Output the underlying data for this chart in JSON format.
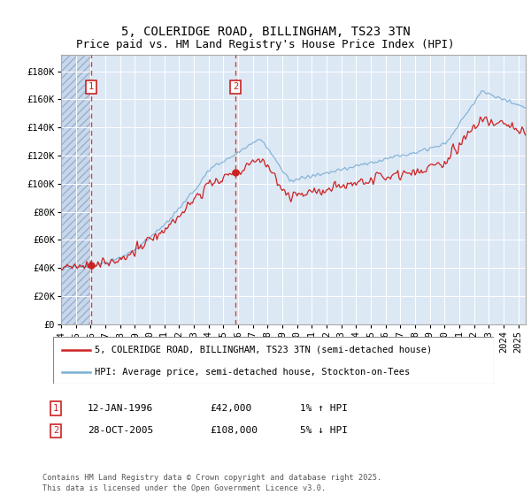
{
  "title": "5, COLERIDGE ROAD, BILLINGHAM, TS23 3TN",
  "subtitle": "Price paid vs. HM Land Registry's House Price Index (HPI)",
  "xlim_start": 1994.0,
  "xlim_end": 2025.5,
  "ylim": [
    0,
    192000
  ],
  "yticks": [
    0,
    20000,
    40000,
    60000,
    80000,
    100000,
    120000,
    140000,
    160000,
    180000
  ],
  "ytick_labels": [
    "£0",
    "£20K",
    "£40K",
    "£60K",
    "£80K",
    "£100K",
    "£120K",
    "£140K",
    "£160K",
    "£180K"
  ],
  "sale1_date": 1996.04,
  "sale1_price": 42000,
  "sale1_label": "1",
  "sale2_date": 2005.83,
  "sale2_price": 108000,
  "sale2_label": "2",
  "legend_line1": "5, COLERIDGE ROAD, BILLINGHAM, TS23 3TN (semi-detached house)",
  "legend_line2": "HPI: Average price, semi-detached house, Stockton-on-Tees",
  "ann1_date": "12-JAN-1996",
  "ann1_price": "£42,000",
  "ann1_hpi": "1% ↑ HPI",
  "ann2_date": "28-OCT-2005",
  "ann2_price": "£108,000",
  "ann2_hpi": "5% ↓ HPI",
  "footnote": "Contains HM Land Registry data © Crown copyright and database right 2025.\nThis data is licensed under the Open Government Licence v3.0.",
  "line_color_red": "#cc2222",
  "line_color_blue": "#7bafd4",
  "background_color": "#dde8f5",
  "hatch_bg": "#c8d8ec",
  "grid_color": "#ffffff",
  "title_fontsize": 10,
  "tick_fontsize": 7.5,
  "legend_fontsize": 8
}
